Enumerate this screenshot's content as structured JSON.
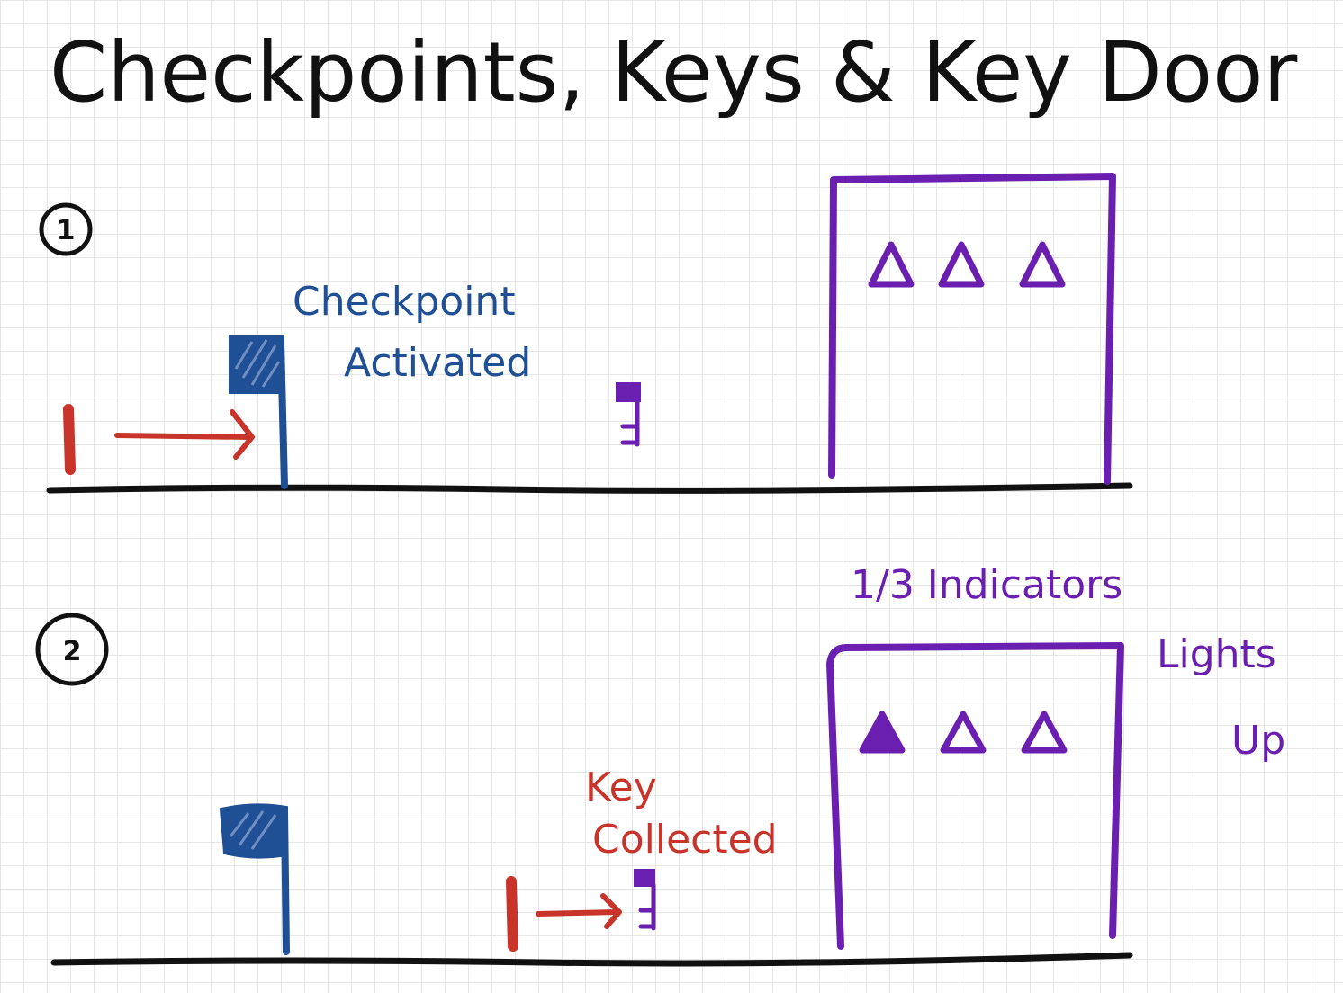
{
  "title": "Checkpoints, Keys & Key Door",
  "colors": {
    "ink": "#111111",
    "player": "#c8332a",
    "checkpoint": "#1f4f94",
    "key_door": "#6a1fb0",
    "ground": "#111111"
  },
  "panels": [
    {
      "step": "1",
      "labels": {
        "checkpoint": [
          "Checkpoint",
          "Activated"
        ]
      },
      "indicators_lit": 0,
      "indicators_total": 3
    },
    {
      "step": "2",
      "labels": {
        "key": [
          "Key",
          "Collected"
        ],
        "door": [
          "1/3 Indicators",
          "Lights",
          "Up"
        ]
      },
      "indicators_lit": 1,
      "indicators_total": 3
    }
  ]
}
